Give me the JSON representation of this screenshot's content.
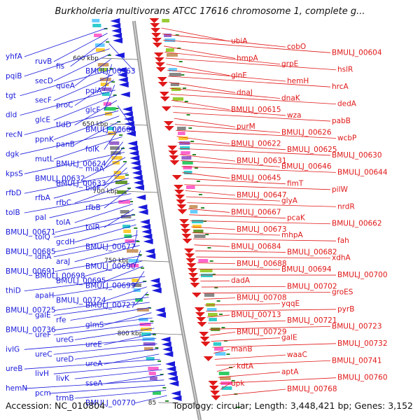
{
  "title": "Burkholderia multivorans ATCC 17616 chromosome 1, complete g...",
  "footer": {
    "accession": "Accession: NC_010804",
    "topology": "Topology: circular; Length: 3,448,421 bp; Genes: 3,152"
  },
  "colors": {
    "minus_strand": "#1a1adb",
    "plus_strand": "#e01818",
    "backbone": "#9a9a9a",
    "tick": "#2a8a2a"
  },
  "kbp_ticks": [
    "600 kbp",
    "650 kbp",
    "700 kbp",
    "750 kbp",
    "800 kbp",
    "85"
  ],
  "left_labels": [
    "yhfA",
    "ruvB",
    "fis",
    "BMULJ_00563",
    "pqiB",
    "secD",
    "queA",
    "pqiA",
    "tgt",
    "secF",
    "proC",
    "glcF",
    "dld",
    "glcE",
    "tldD",
    "BMULJ_00602",
    "recN",
    "ppnK",
    "panB",
    "folK",
    "dgk",
    "mutL",
    "BMULJ_00624",
    "miaA",
    "kpsS",
    "BMULJ_00632",
    "BMULJ_00633",
    "bioF",
    "rfbD",
    "rfbA",
    "rfbC",
    "rfbB",
    "tolB",
    "pal",
    "tolA",
    "tolR",
    "BMULJ_00671",
    "tolQ",
    "gcdH",
    "BMULJ_00677",
    "BMULJ_00685",
    "ldhA",
    "araJ",
    "BMULJ_00690",
    "BMULJ_00691",
    "BMULJ_00698",
    "BMULJ_00695",
    "BMULJ_00699",
    "thiD",
    "apaH",
    "BMULJ_00724",
    "BMULJ_00727",
    "BMULJ_00725",
    "galE",
    "rfe",
    "glmS",
    "BMULJ_00736",
    "ureF",
    "ureG",
    "ureE",
    "ivlG",
    "ureC",
    "ureD",
    "ureA",
    "ureB",
    "livH",
    "livK",
    "sseA",
    "hemN",
    "pcm",
    "trmB",
    "BMULJ_00770"
  ],
  "right_labels": [
    "ubiA",
    "cobO",
    "BMULJ_00604",
    "hmpA",
    "grpE",
    "hslR",
    "glnE",
    "hemH",
    "hrcA",
    "dnaJ",
    "dnaK",
    "dedA",
    "BMULJ_00615",
    "wza",
    "pabB",
    "purM",
    "BMULJ_00626",
    "wcbP",
    "BMULJ_00622",
    "BMULJ_00625",
    "BMULJ_00630",
    "BMULJ_00631",
    "BMULJ_00646",
    "BMULJ_00644",
    "BMULJ_00645",
    "fimT",
    "pilW",
    "BMULJ_00647",
    "glyA",
    "nrdR",
    "BMULJ_00667",
    "pcaK",
    "BMULJ_00662",
    "BMULJ_00673",
    "mhpA",
    "fah",
    "BMULJ_00684",
    "BMULJ_00682",
    "xdhA",
    "BMULJ_00688",
    "BMULJ_00694",
    "BMULJ_00700",
    "dadA",
    "BMULJ_00702",
    "groES",
    "BMULJ_00708",
    "yqqE",
    "pyrB",
    "BMULJ_00713",
    "BMULJ_00721",
    "BMULJ_00723",
    "BMULJ_00729",
    "galE",
    "BMULJ_00732",
    "manB",
    "waaC",
    "BMULJ_00741",
    "kdtA",
    "aptA",
    "BMULJ_00760",
    "upk",
    "BMULJ_00768"
  ]
}
